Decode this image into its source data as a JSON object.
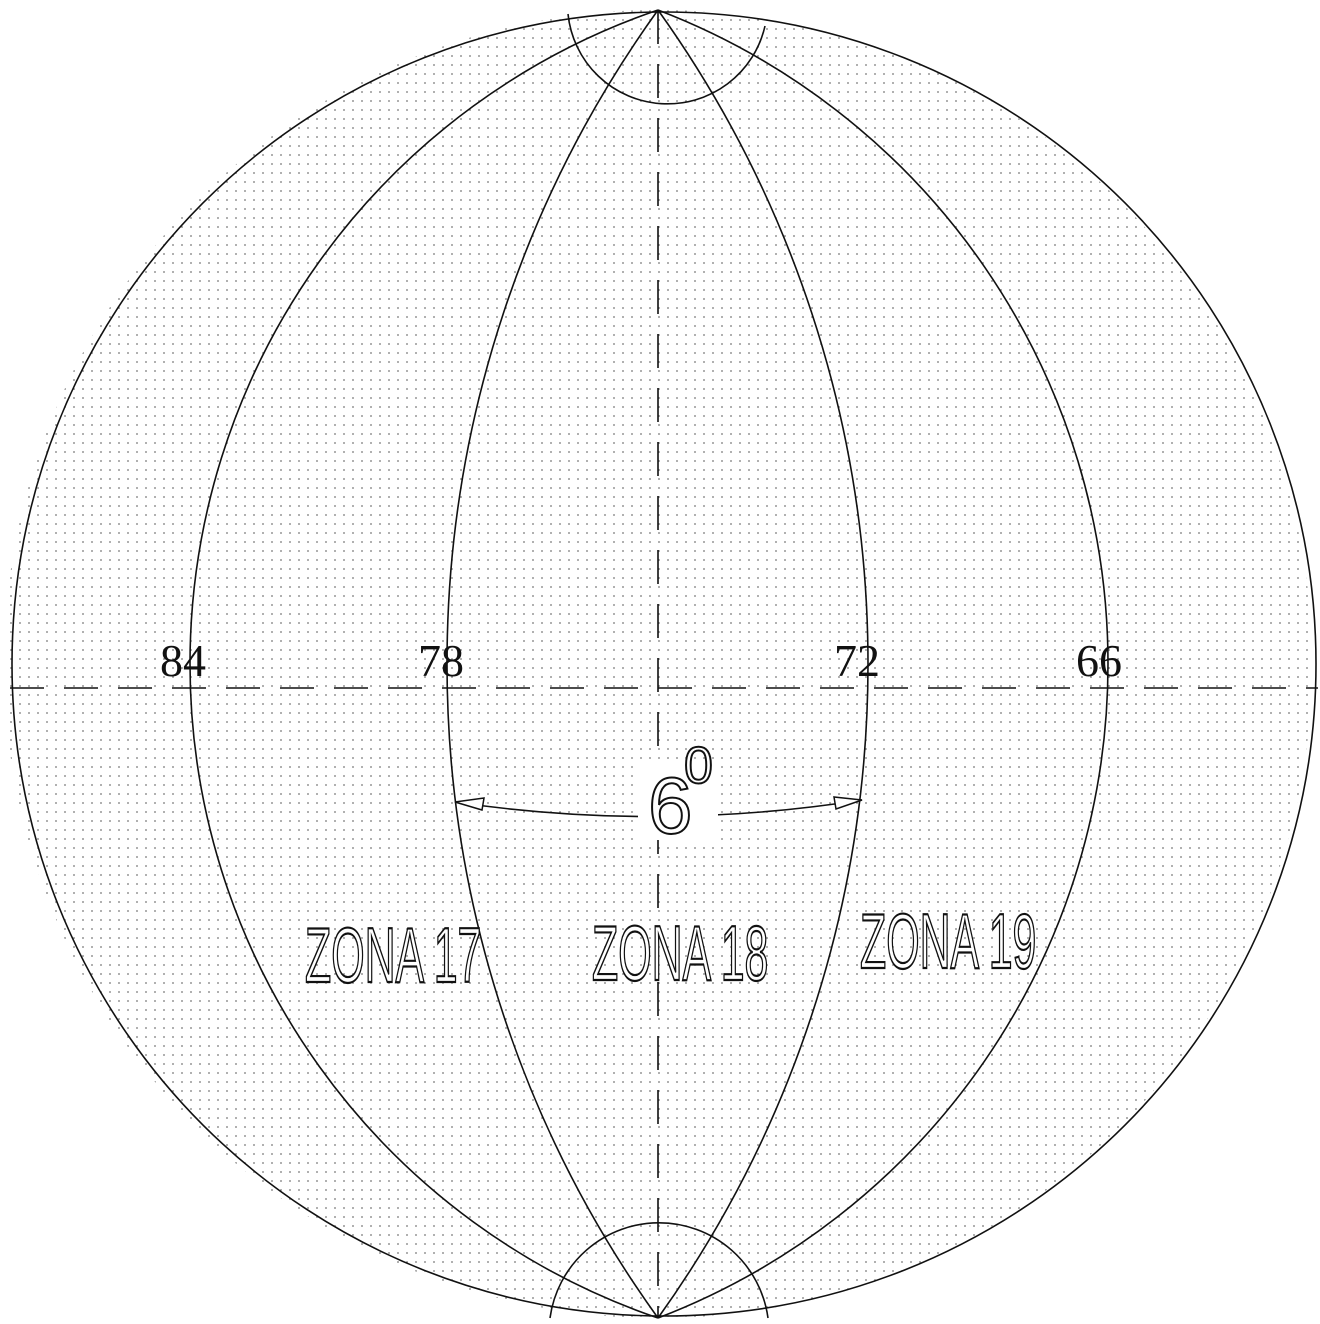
{
  "meridians": [
    "84",
    "78",
    "72",
    "66"
  ],
  "angle": {
    "value": "6",
    "superscript": "0"
  },
  "zones": [
    "ZONA 17",
    "ZONA 18",
    "ZONA 19"
  ]
}
